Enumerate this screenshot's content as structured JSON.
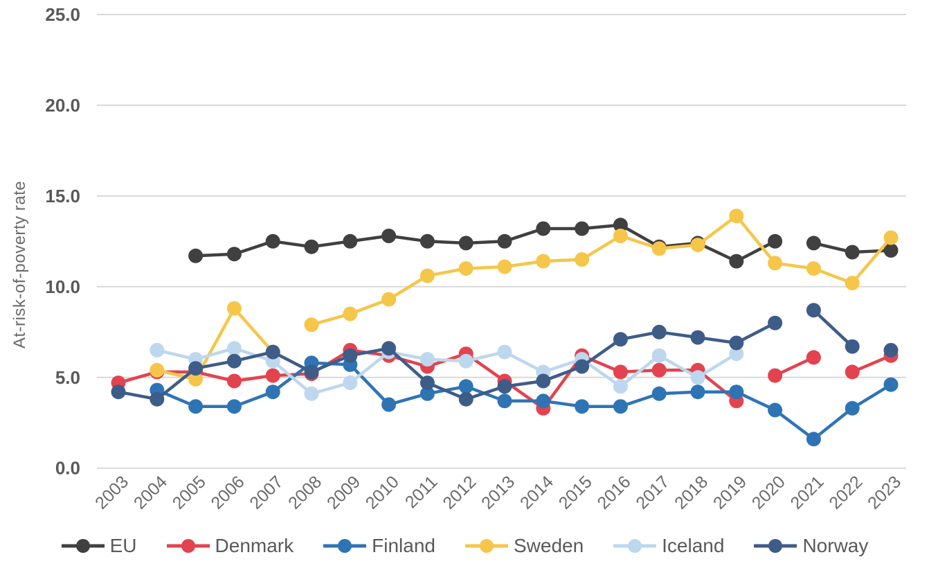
{
  "chart_data": {
    "type": "line",
    "title": "",
    "ylabel": "At-risk-of-poverty rate",
    "xlabel": "",
    "x_years": [
      2003,
      2004,
      2005,
      2006,
      2007,
      2008,
      2009,
      2010,
      2011,
      2012,
      2013,
      2014,
      2015,
      2016,
      2017,
      2018,
      2019,
      2020,
      2021,
      2022,
      2023
    ],
    "ylim": [
      0,
      25
    ],
    "ytick_labels": [
      "0.0",
      "5.0",
      "10.0",
      "15.0",
      "20.0",
      "25.0"
    ],
    "grid": "horizontal-only",
    "gridline_color": "#d9d9d9",
    "legend_position": "bottom",
    "marker": "circle",
    "series": [
      {
        "name": "EU",
        "color": "#404040",
        "values": [
          null,
          null,
          11.7,
          11.8,
          12.5,
          12.2,
          12.5,
          12.8,
          12.5,
          12.4,
          12.5,
          13.2,
          13.2,
          13.4,
          12.2,
          12.4,
          11.4,
          12.5,
          12.4,
          11.9,
          12.0
        ],
        "breaks": [
          [
            2020,
            2021
          ]
        ]
      },
      {
        "name": "Denmark",
        "color": "#e2434f",
        "values": [
          4.7,
          5.3,
          5.3,
          4.8,
          5.1,
          5.2,
          6.5,
          6.2,
          5.6,
          6.3,
          4.8,
          3.3,
          6.2,
          5.3,
          5.4,
          5.4,
          3.7,
          5.1,
          6.1,
          5.3,
          6.2
        ],
        "breaks": [
          [
            2019,
            2020
          ],
          [
            2021,
            2022
          ]
        ]
      },
      {
        "name": "Finland",
        "color": "#2e74b5",
        "values": [
          null,
          4.3,
          3.4,
          3.4,
          4.2,
          5.8,
          5.7,
          3.5,
          4.1,
          4.5,
          3.7,
          3.7,
          3.4,
          3.4,
          4.1,
          4.2,
          4.2,
          3.2,
          1.6,
          3.3,
          4.6
        ],
        "breaks": []
      },
      {
        "name": "Sweden",
        "color": "#f6c64a",
        "values": [
          null,
          5.4,
          4.9,
          8.8,
          6.4,
          7.9,
          8.5,
          9.3,
          10.6,
          11.0,
          11.1,
          11.4,
          11.5,
          12.8,
          12.1,
          12.3,
          13.9,
          11.3,
          11.0,
          10.2,
          12.7
        ],
        "breaks": [
          [
            2007,
            2008
          ]
        ]
      },
      {
        "name": "Iceland",
        "color": "#bdd7ee",
        "values": [
          null,
          6.5,
          6.0,
          6.6,
          5.9,
          4.1,
          4.7,
          6.4,
          6.0,
          5.9,
          6.4,
          5.3,
          6.0,
          4.5,
          6.2,
          5.0,
          6.3,
          null,
          null,
          null,
          null
        ],
        "breaks": []
      },
      {
        "name": "Norway",
        "color": "#3e5c88",
        "values": [
          4.2,
          3.8,
          5.5,
          5.9,
          6.4,
          5.3,
          6.2,
          6.6,
          4.7,
          3.8,
          4.5,
          4.8,
          5.6,
          7.1,
          7.5,
          7.2,
          6.9,
          8.0,
          8.7,
          6.7,
          6.5
        ],
        "breaks": [
          [
            2020,
            2021
          ],
          [
            2022,
            2023
          ]
        ]
      }
    ]
  }
}
